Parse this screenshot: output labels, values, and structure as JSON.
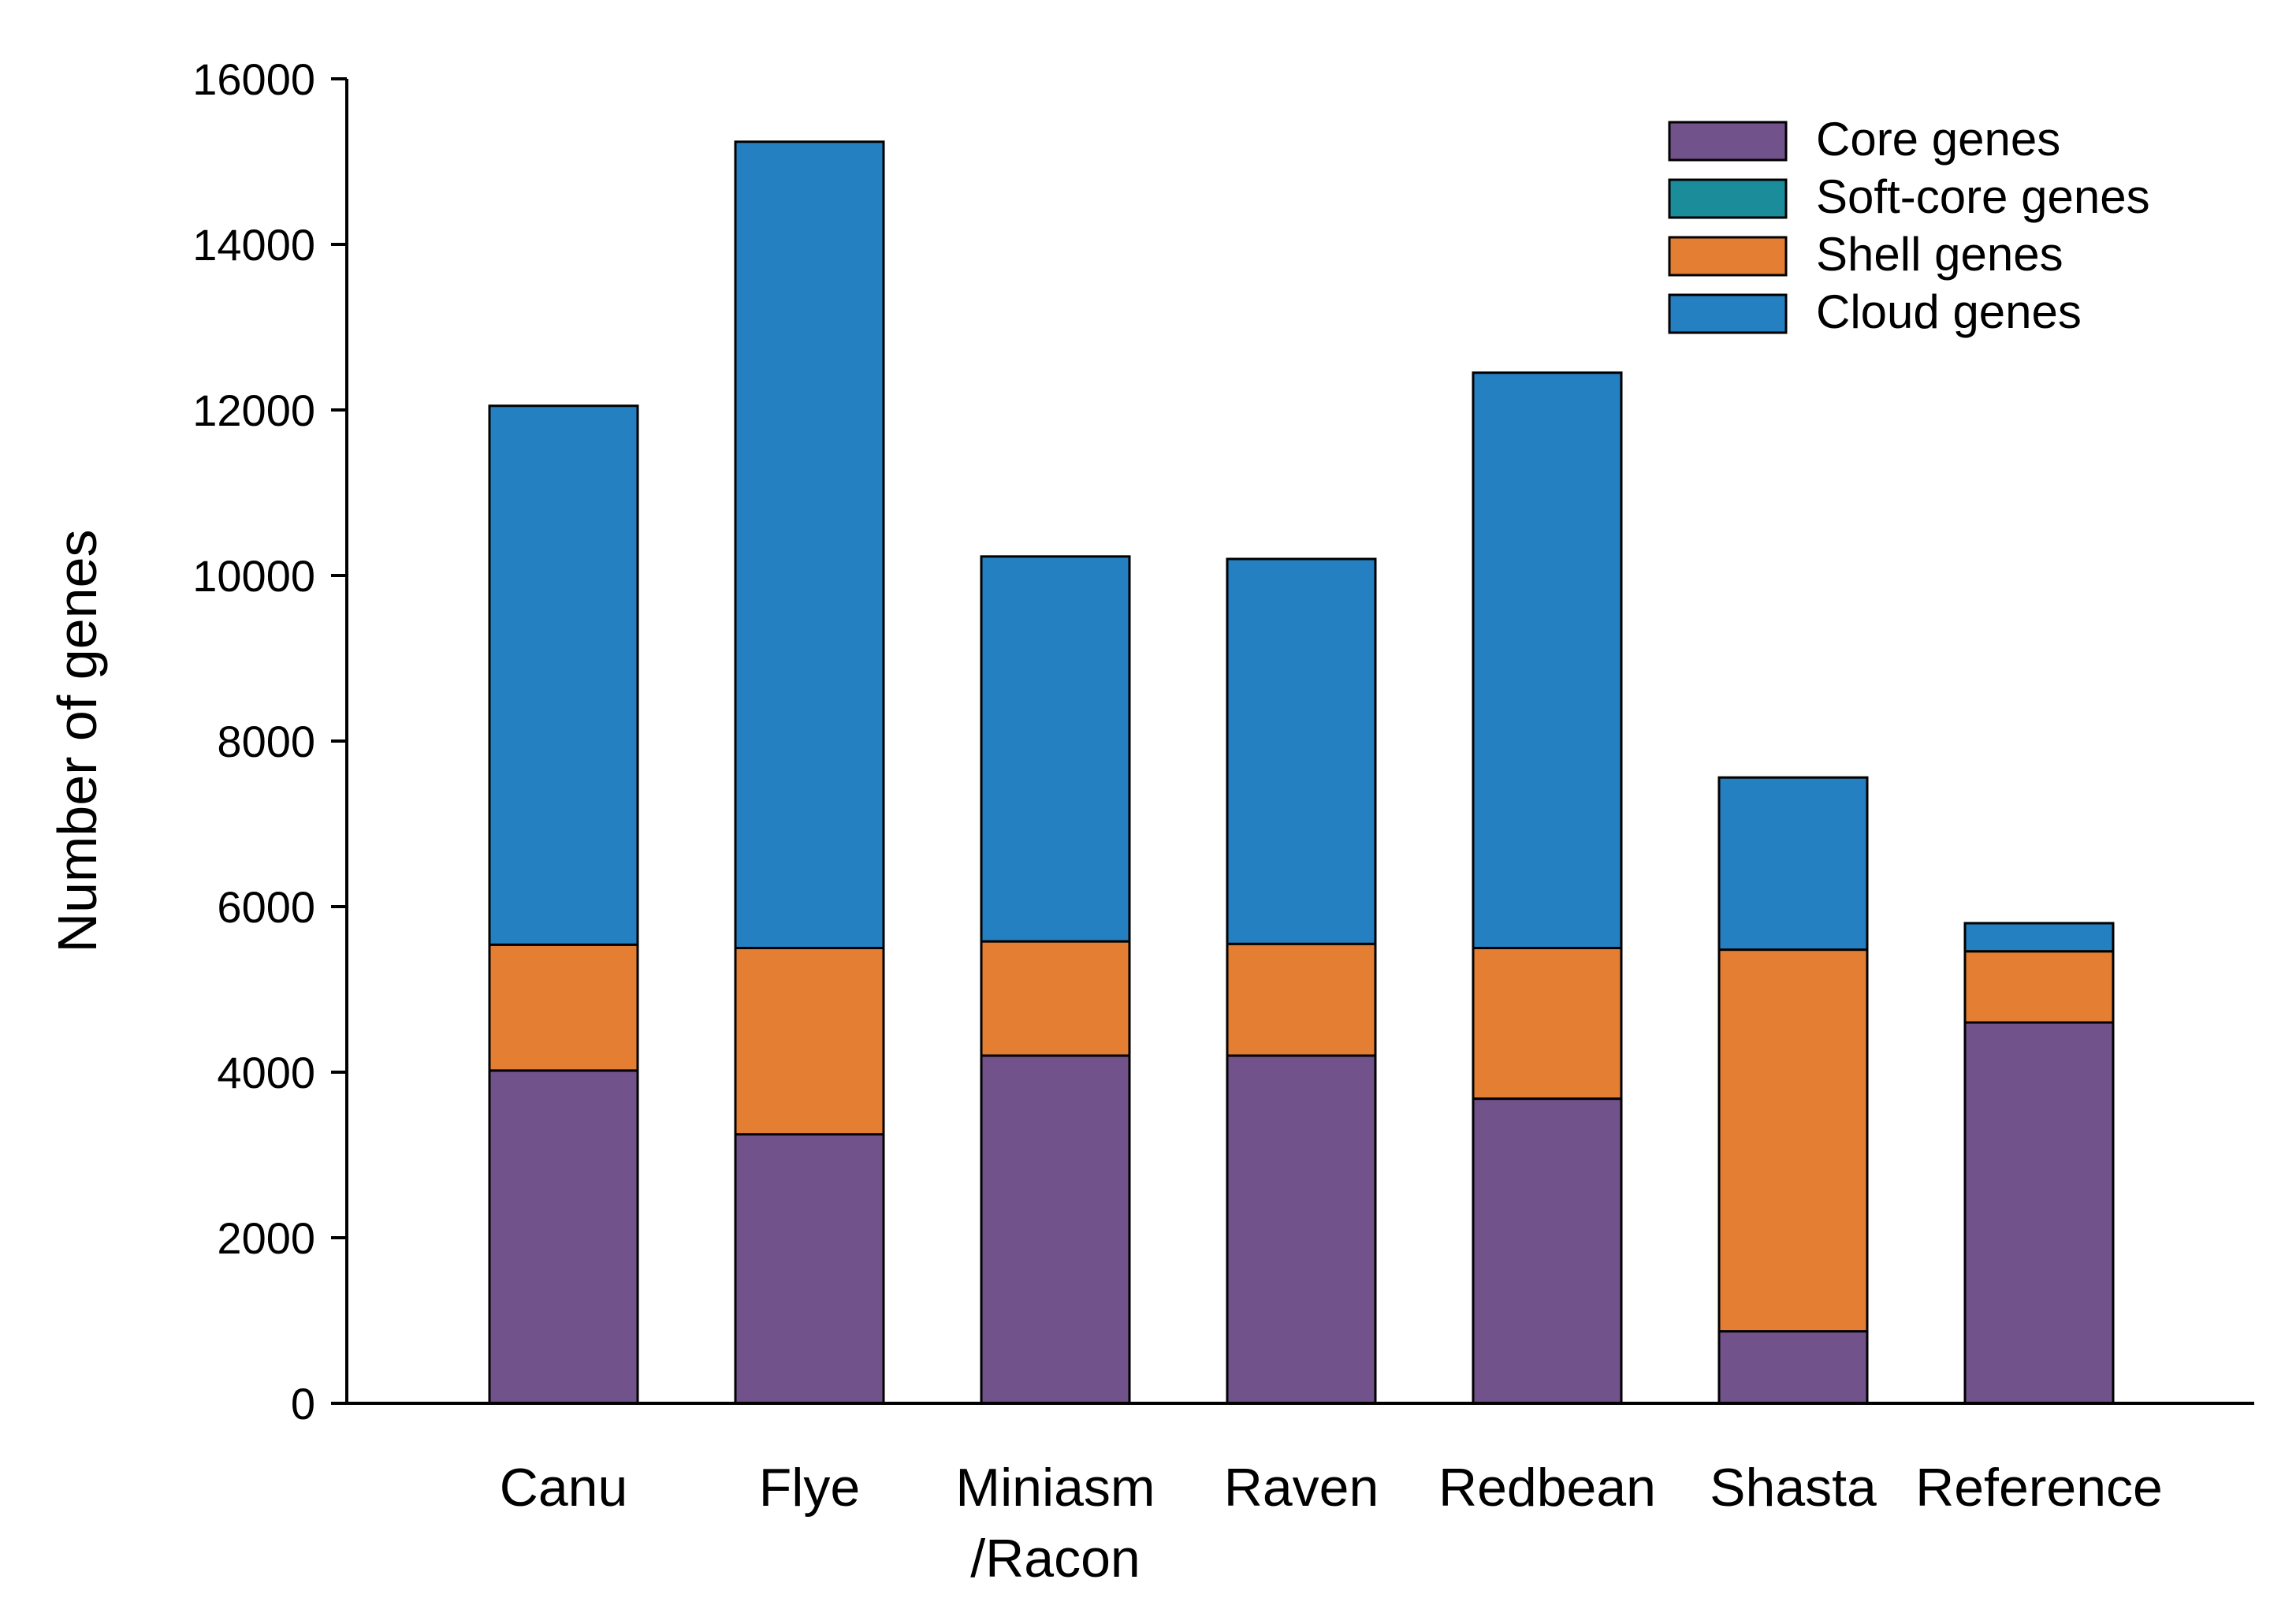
{
  "chart_data": {
    "type": "bar",
    "stacked": true,
    "title": "",
    "xlabel": "",
    "ylabel": "Number of genes",
    "ylim": [
      0,
      16000
    ],
    "yticks": [
      0,
      2000,
      4000,
      6000,
      8000,
      10000,
      12000,
      14000,
      16000
    ],
    "categories": [
      [
        "Canu"
      ],
      [
        "Flye"
      ],
      [
        "Miniasm",
        "/Racon"
      ],
      [
        "Raven"
      ],
      [
        "Redbean"
      ],
      [
        "Shasta"
      ],
      [
        "Reference"
      ]
    ],
    "series": [
      {
        "name": "Core genes",
        "color": "#72528A",
        "values": [
          4020,
          3250,
          4200,
          4200,
          3680,
          870,
          4600
        ]
      },
      {
        "name": "Soft-core genes",
        "color": "#1A8C9A",
        "values": [
          0,
          0,
          0,
          0,
          0,
          0,
          0
        ]
      },
      {
        "name": "Shell genes",
        "color": "#E47E33",
        "values": [
          1520,
          2250,
          1380,
          1350,
          1820,
          4610,
          860
        ]
      },
      {
        "name": "Cloud genes",
        "color": "#2580C2",
        "values": [
          6510,
          9740,
          4650,
          4650,
          6950,
          2080,
          340
        ]
      }
    ],
    "legend_position": "top-right",
    "grid": false
  }
}
